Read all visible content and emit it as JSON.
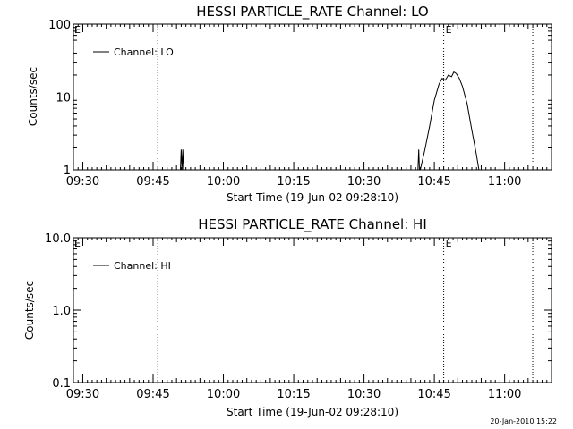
{
  "chart_data": [
    {
      "type": "line",
      "title": "HESSI PARTICLE_RATE Channel: LO",
      "xlabel": "Start Time (19-Jun-02 09:28:10)",
      "ylabel": "Counts/sec",
      "y_scale": "log",
      "ylim": [
        1,
        100
      ],
      "y_ticks": [
        {
          "v": 1,
          "label": "1"
        },
        {
          "v": 10,
          "label": "10"
        },
        {
          "v": 100,
          "label": "100"
        }
      ],
      "xlim": [
        "09:28",
        "11:10"
      ],
      "x_ticks": [
        "09:30",
        "09:45",
        "10:00",
        "10:15",
        "10:30",
        "10:45",
        "11:00"
      ],
      "legend": {
        "entries": [
          "Channel: LO"
        ],
        "placement": "top-left"
      },
      "markers": [
        {
          "time": "09:46",
          "label": ""
        },
        {
          "time": "10:47",
          "label": "E"
        },
        {
          "time": "11:06",
          "label": ""
        }
      ],
      "corner_label": "E",
      "series": [
        {
          "name": "Channel: LO",
          "segments": [
            [
              [
                "09:50:50",
                1
              ],
              [
                "09:51:00",
                1.9
              ],
              [
                "09:51:10",
                1
              ],
              [
                "09:51:20",
                1.9
              ],
              [
                "09:51:30",
                1
              ]
            ],
            [
              [
                "10:41:30",
                1
              ],
              [
                "10:41:40",
                1.9
              ],
              [
                "10:41:50",
                1
              ]
            ],
            [
              [
                "10:42:00",
                1
              ],
              [
                "10:43:00",
                1.9
              ],
              [
                "10:44:00",
                4
              ],
              [
                "10:45:00",
                9
              ],
              [
                "10:46:00",
                15
              ],
              [
                "10:46:40",
                18
              ],
              [
                "10:47:20",
                17
              ],
              [
                "10:48:00",
                20
              ],
              [
                "10:48:40",
                19
              ],
              [
                "10:49:10",
                22
              ],
              [
                "10:49:40",
                21
              ],
              [
                "10:50:20",
                18
              ],
              [
                "10:51:00",
                14
              ],
              [
                "10:52:00",
                8
              ],
              [
                "10:53:00",
                3.5
              ],
              [
                "10:54:00",
                1.6
              ],
              [
                "10:54:30",
                1
              ]
            ]
          ]
        }
      ]
    },
    {
      "type": "line",
      "title": "HESSI PARTICLE_RATE Channel: HI",
      "xlabel": "Start Time (19-Jun-02 09:28:10)",
      "ylabel": "Counts/sec",
      "y_scale": "log",
      "ylim": [
        0.1,
        10
      ],
      "y_ticks": [
        {
          "v": 0.1,
          "label": "0.1"
        },
        {
          "v": 1,
          "label": "1.0"
        },
        {
          "v": 10,
          "label": "10.0"
        }
      ],
      "xlim": [
        "09:28",
        "11:10"
      ],
      "x_ticks": [
        "09:30",
        "09:45",
        "10:00",
        "10:15",
        "10:30",
        "10:45",
        "11:00"
      ],
      "legend": {
        "entries": [
          "Channel: HI"
        ],
        "placement": "top-left"
      },
      "markers": [
        {
          "time": "09:46",
          "label": ""
        },
        {
          "time": "10:47",
          "label": "E"
        },
        {
          "time": "11:06",
          "label": ""
        }
      ],
      "corner_label": "E",
      "series": [
        {
          "name": "Channel: HI",
          "segments": []
        }
      ]
    }
  ],
  "timestamp": "20-Jan-2010 15:22"
}
